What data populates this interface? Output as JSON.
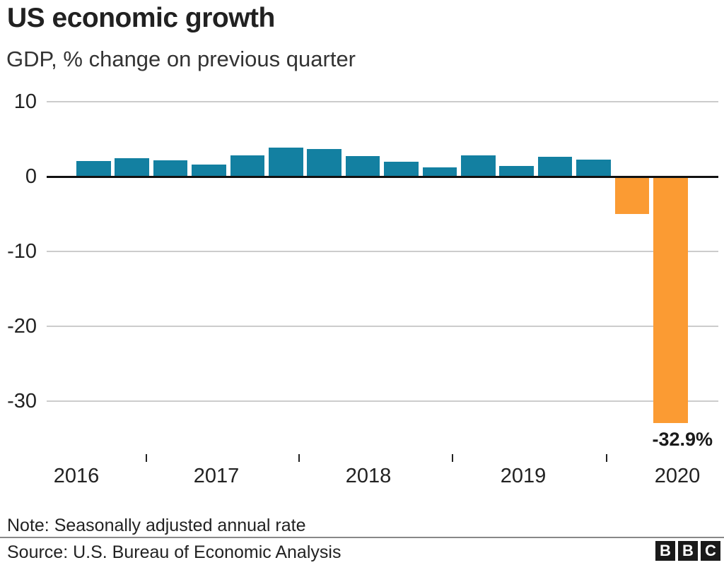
{
  "header": {
    "title": "US economic growth",
    "subtitle": "GDP, % change on previous quarter"
  },
  "footer": {
    "note": "Note: Seasonally adjusted annual rate",
    "source": "Source: U.S. Bureau of Economic Analysis",
    "logo_letters": [
      "B",
      "B",
      "C"
    ]
  },
  "colors": {
    "positive_bar": "#1380A1",
    "negative_bar": "#FB9B33",
    "zero_line": "#111111",
    "gridline": "#CCCCCC",
    "text": "#222222"
  },
  "chart_data": {
    "type": "bar",
    "title": "US economic growth",
    "subtitle": "GDP, % change on previous quarter",
    "unit": "% (annualized rate)",
    "x": [
      "2016 Q3",
      "2016 Q4",
      "2017 Q1",
      "2017 Q2",
      "2017 Q3",
      "2017 Q4",
      "2018 Q1",
      "2018 Q2",
      "2018 Q3",
      "2018 Q4",
      "2019 Q1",
      "2019 Q2",
      "2019 Q3",
      "2019 Q4",
      "2020 Q1",
      "2020 Q2"
    ],
    "values": [
      2.1,
      2.5,
      2.2,
      1.6,
      2.8,
      3.9,
      3.7,
      2.7,
      2.0,
      1.2,
      2.8,
      1.4,
      2.6,
      2.3,
      -5.0,
      -32.9
    ],
    "yticks": [
      10,
      0,
      -10,
      -20,
      -30
    ],
    "ylim": [
      -34,
      11
    ],
    "xtick_labels": [
      "2016",
      "2017",
      "2018",
      "2019",
      "2020"
    ],
    "annotation": {
      "text": "-32.9%",
      "bar_index": 15
    },
    "grid": true,
    "legend": false
  }
}
